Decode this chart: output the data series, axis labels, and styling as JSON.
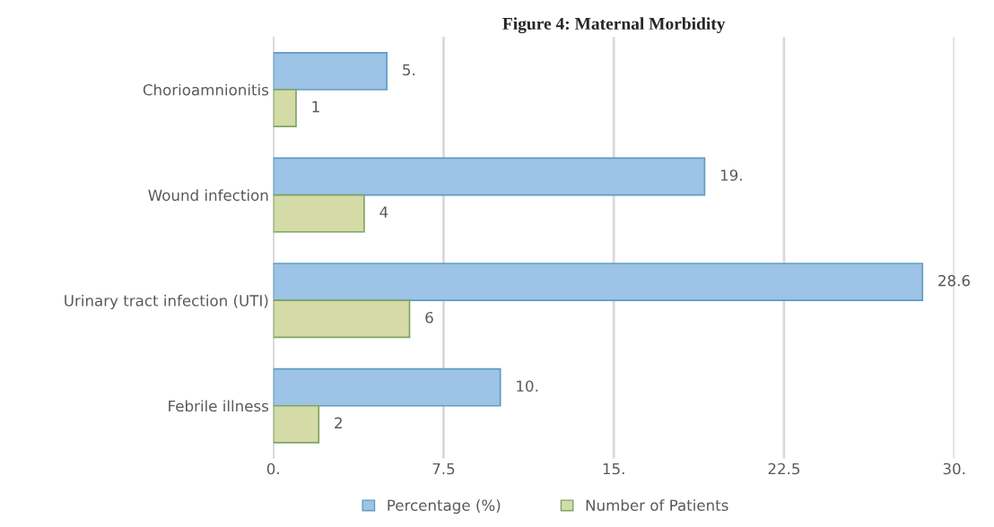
{
  "chart_data": {
    "type": "bar",
    "orientation": "horizontal",
    "title": "Figure 4: Maternal Morbidity",
    "categories": [
      "Chorioamnionitis",
      "Wound infection",
      "Urinary tract infection (UTI)",
      "Febrile illness"
    ],
    "series": [
      {
        "name": "Percentage (%)",
        "color": "#9dc3e6",
        "values": [
          5,
          19,
          28.6,
          10
        ],
        "value_labels": [
          "5.",
          "19.",
          "28.6",
          "10."
        ]
      },
      {
        "name": "Number of Patients",
        "color": "#d4dba6",
        "values": [
          1,
          4,
          6,
          2
        ],
        "value_labels": [
          "1",
          "4",
          "6",
          "2"
        ]
      }
    ],
    "xlim": [
      0,
      30
    ],
    "xticks": [
      {
        "value": 0,
        "label": "0."
      },
      7.5,
      {
        "value": 15,
        "label": "15."
      },
      22.5,
      {
        "value": 30,
        "label": "30."
      }
    ],
    "grid": "x",
    "legend": "bottom"
  }
}
